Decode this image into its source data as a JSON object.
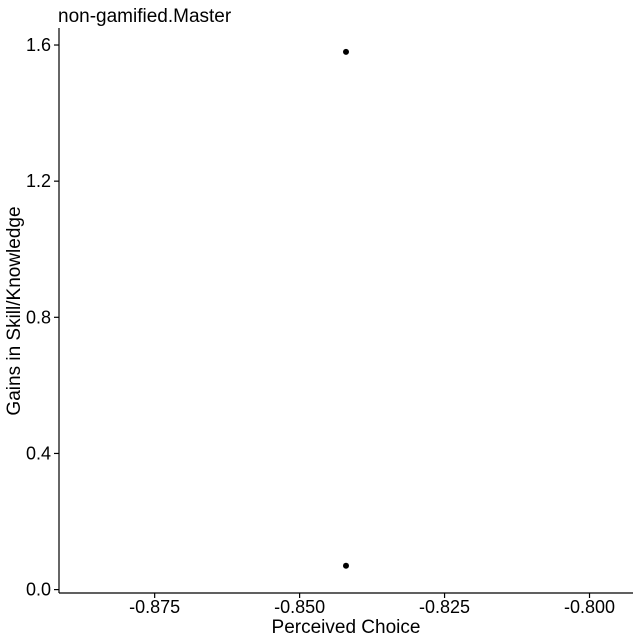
{
  "chart_data": {
    "type": "scatter",
    "title": "non-gamified.Master",
    "xlabel": "Perceived Choice",
    "ylabel": "Gains in Skill/Knowledge",
    "xlim": [
      -0.8915,
      -0.7925
    ],
    "ylim": [
      -0.01,
      1.65
    ],
    "xticks": [
      -0.875,
      -0.85,
      -0.825,
      -0.8
    ],
    "xtick_labels": [
      "-0.875",
      "-0.850",
      "-0.825",
      "-0.800"
    ],
    "yticks": [
      0.0,
      0.4,
      0.8,
      1.2,
      1.6
    ],
    "ytick_labels": [
      "0.0",
      "0.4",
      "0.8",
      "1.2",
      "1.6"
    ],
    "grid": false,
    "points": [
      {
        "x": -0.842,
        "y": 1.58
      },
      {
        "x": -0.842,
        "y": 0.07
      }
    ],
    "point_color": "#000000"
  }
}
